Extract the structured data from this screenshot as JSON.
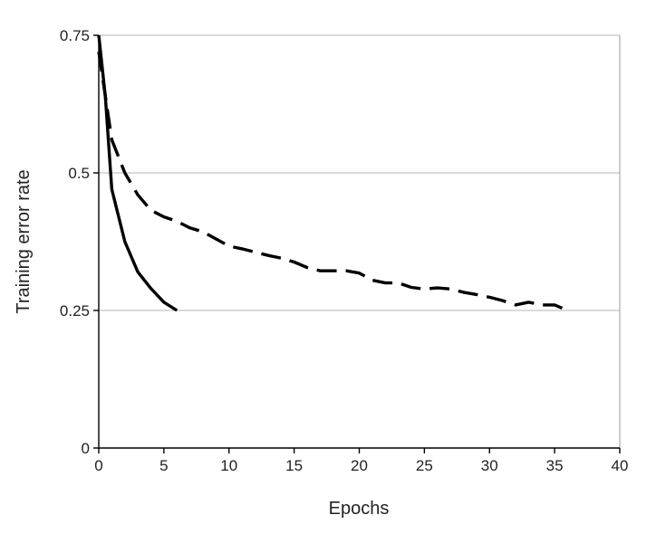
{
  "chart_data": {
    "type": "line",
    "xlabel": "Epochs",
    "ylabel": "Training error rate",
    "xlim": [
      0,
      40
    ],
    "ylim": [
      0,
      0.75
    ],
    "x_ticks": [
      0,
      5,
      10,
      15,
      20,
      25,
      30,
      35,
      40
    ],
    "x_tick_labels": [
      "0",
      "5",
      "10",
      "15",
      "20",
      "25",
      "30",
      "35",
      "40"
    ],
    "y_ticks": [
      0,
      0.25,
      0.5,
      0.75
    ],
    "y_tick_labels": [
      "0",
      "0.25",
      "0.5",
      "0.75"
    ],
    "grid": {
      "horizontal": true,
      "vertical": false
    },
    "legend": "none",
    "series": [
      {
        "style": "solid",
        "color": "#000000",
        "x": [
          0,
          0.5,
          1,
          2,
          3,
          4,
          5,
          6
        ],
        "y": [
          0.75,
          0.64,
          0.47,
          0.375,
          0.32,
          0.29,
          0.265,
          0.25
        ]
      },
      {
        "style": "dashed",
        "color": "#000000",
        "x": [
          0,
          1,
          2,
          3,
          4,
          5,
          6,
          7,
          8,
          9,
          10,
          11,
          12,
          13,
          14,
          15,
          16,
          17,
          18,
          19,
          20,
          21,
          22,
          23,
          24,
          25,
          26,
          27,
          28,
          29,
          30,
          31,
          32,
          33,
          34,
          35,
          36
        ],
        "y": [
          0.72,
          0.56,
          0.5,
          0.46,
          0.432,
          0.42,
          0.412,
          0.4,
          0.393,
          0.38,
          0.367,
          0.362,
          0.356,
          0.35,
          0.345,
          0.338,
          0.328,
          0.322,
          0.322,
          0.322,
          0.318,
          0.305,
          0.3,
          0.3,
          0.292,
          0.289,
          0.291,
          0.289,
          0.283,
          0.279,
          0.274,
          0.268,
          0.26,
          0.265,
          0.26,
          0.26,
          0.25
        ]
      }
    ]
  }
}
